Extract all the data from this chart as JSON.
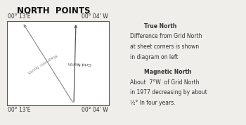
{
  "title": "NORTH  POINTS",
  "title_bg": "#c5d9d5",
  "bg_color": "#f0eeea",
  "box_bg": "#ffffff",
  "corner_labels": {
    "top_left": "00° 13'E",
    "top_right": "00° 04' W",
    "bot_left": "00° 13'E",
    "bot_right": "00° 04' W"
  },
  "grid_north_label": "Grid North",
  "magnetic_north_label": "Magnetic North",
  "right_text": [
    {
      "text": "True North",
      "bold": true,
      "indent": true
    },
    {
      "text": "Difference from Grid North",
      "bold": false,
      "indent": false
    },
    {
      "text": "at sheet corners is shown",
      "bold": false,
      "indent": false
    },
    {
      "text": "in diagram on left",
      "bold": false,
      "indent": false
    },
    {
      "text": "",
      "bold": false,
      "indent": false
    },
    {
      "text": "Magnetic North",
      "bold": true,
      "indent": true
    },
    {
      "text": "About  7°W  of Grid North",
      "bold": false,
      "indent": false
    },
    {
      "text": "in 1977 decreasing by about",
      "bold": false,
      "indent": false
    },
    {
      "text": "½° In four years.",
      "bold": false,
      "indent": false
    }
  ],
  "line_color": "#555555",
  "mag_line_color": "#888888",
  "text_color": "#333333"
}
